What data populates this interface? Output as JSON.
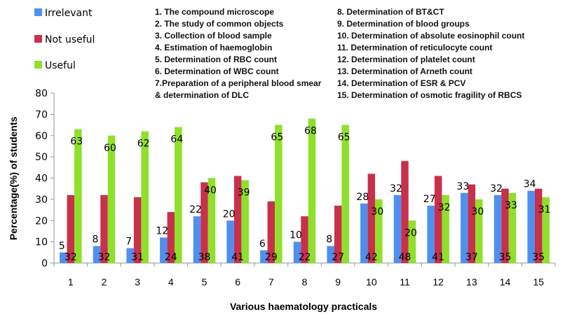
{
  "chart_data": {
    "type": "bar",
    "title": "",
    "xlabel": "Various haematology practicals",
    "ylabel": "Percentage(%) of students",
    "ylim": [
      0,
      80
    ],
    "yticks": [
      0,
      10,
      20,
      30,
      40,
      50,
      60,
      70,
      80
    ],
    "grid": false,
    "legend_position": "top-left",
    "categories": [
      "1",
      "2",
      "3",
      "4",
      "5",
      "6",
      "7",
      "8",
      "9",
      "10",
      "11",
      "12",
      "13",
      "14",
      "15"
    ],
    "series": [
      {
        "name": "Irrelevant",
        "color": "#4F8FF0",
        "values": [
          5,
          8,
          7,
          12,
          22,
          20,
          6,
          10,
          8,
          28,
          32,
          27,
          33,
          32,
          34
        ]
      },
      {
        "name": "Not useful",
        "color": "#C8304C",
        "values": [
          32,
          32,
          31,
          24,
          38,
          41,
          29,
          22,
          27,
          42,
          48,
          41,
          37,
          35,
          35
        ]
      },
      {
        "name": "Useful",
        "color": "#8FE02A",
        "values": [
          63,
          60,
          62,
          64,
          40,
          39,
          65,
          68,
          65,
          30,
          20,
          32,
          30,
          33,
          31
        ]
      }
    ],
    "key_left": [
      "1. The compound microscope",
      "2. The study of common objects",
      "3. Collection of blood sample",
      "4. Estimation of haemoglobin",
      "5. Determination of RBC count",
      "6. Determination of WBC count",
      "7.Preparation of a peripheral blood smear",
      "& determination of DLC"
    ],
    "key_right": [
      "8. Determination of BT&CT",
      "9. Determination of blood groups",
      "10. Determination of absolute eosinophil count",
      "11. Determination of reticulocyte count",
      "12. Determination of platelet count",
      "13. Determination of Arneth count",
      "14. Determination of ESR & PCV",
      "15. Determination of osmotic fragility of RBCS"
    ]
  }
}
